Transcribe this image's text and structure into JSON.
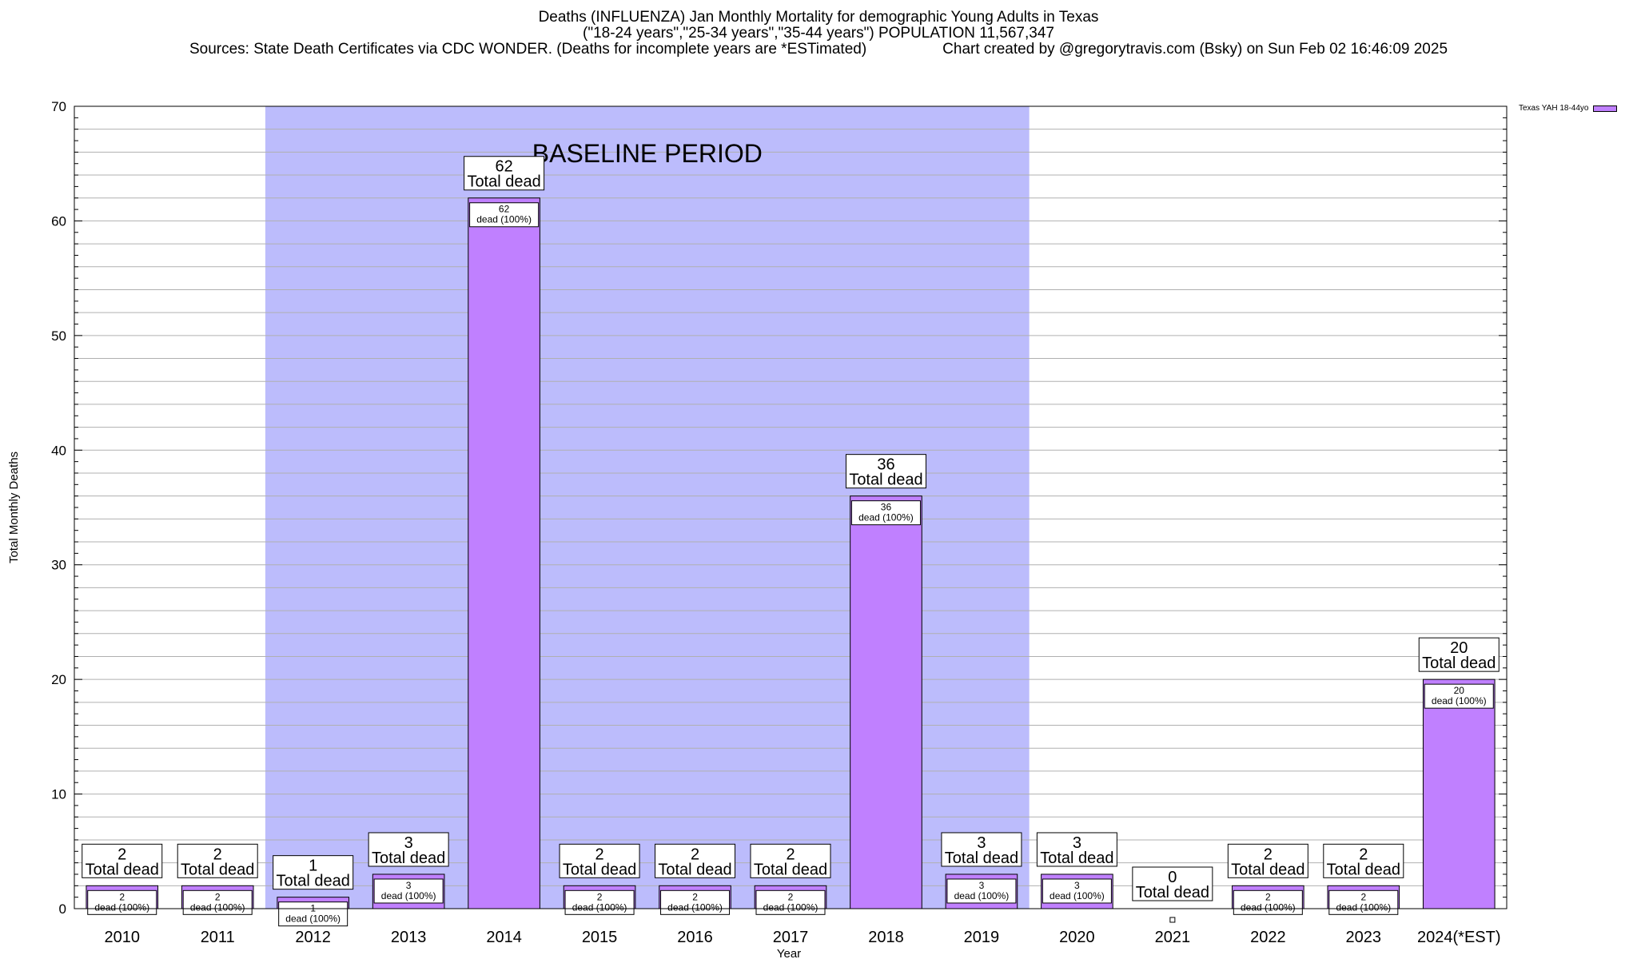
{
  "titles": {
    "line1": "Deaths (INFLUENZA) Jan Monthly Mortality for demographic Young Adults in Texas",
    "line2": "(\"18-24 years\",\"25-34 years\",\"35-44 years\") POPULATION 11,567,347",
    "line3_left": "Sources: State Death Certificates via CDC WONDER. (Deaths for incomplete years are *ESTimated)",
    "line3_right": "Chart created by @gregorytravis.com (Bsky) on Sun Feb 02 16:46:09 2025"
  },
  "legend": {
    "label": "Texas YAH 18-44yo",
    "color": "#c080ff"
  },
  "colors": {
    "bar": "#c080ff",
    "baseline": "#bcbcfc",
    "grid": "#b0b0b0"
  },
  "chart_data": {
    "type": "bar",
    "categories": [
      "2010",
      "2011",
      "2012",
      "2013",
      "2014",
      "2015",
      "2016",
      "2017",
      "2018",
      "2019",
      "2020",
      "2021",
      "2022",
      "2023",
      "2024(*EST)"
    ],
    "series": [
      {
        "name": "Texas YAH 18-44yo",
        "values": [
          2,
          2,
          1,
          3,
          62,
          2,
          2,
          2,
          36,
          3,
          3,
          0,
          2,
          2,
          20
        ]
      }
    ],
    "xlabel": "Year",
    "ylabel": "Total Monthly Deaths",
    "ylim": [
      0,
      70
    ],
    "yticks": [
      0,
      10,
      20,
      30,
      40,
      50,
      60,
      70
    ],
    "grid": true,
    "legend_position": "top-right",
    "baseline_period": {
      "label": "BASELINE PERIOD",
      "from": "2012",
      "to": "2019"
    },
    "label_top_suffix": "Total dead",
    "label_inner_suffix": "dead (100%)"
  }
}
